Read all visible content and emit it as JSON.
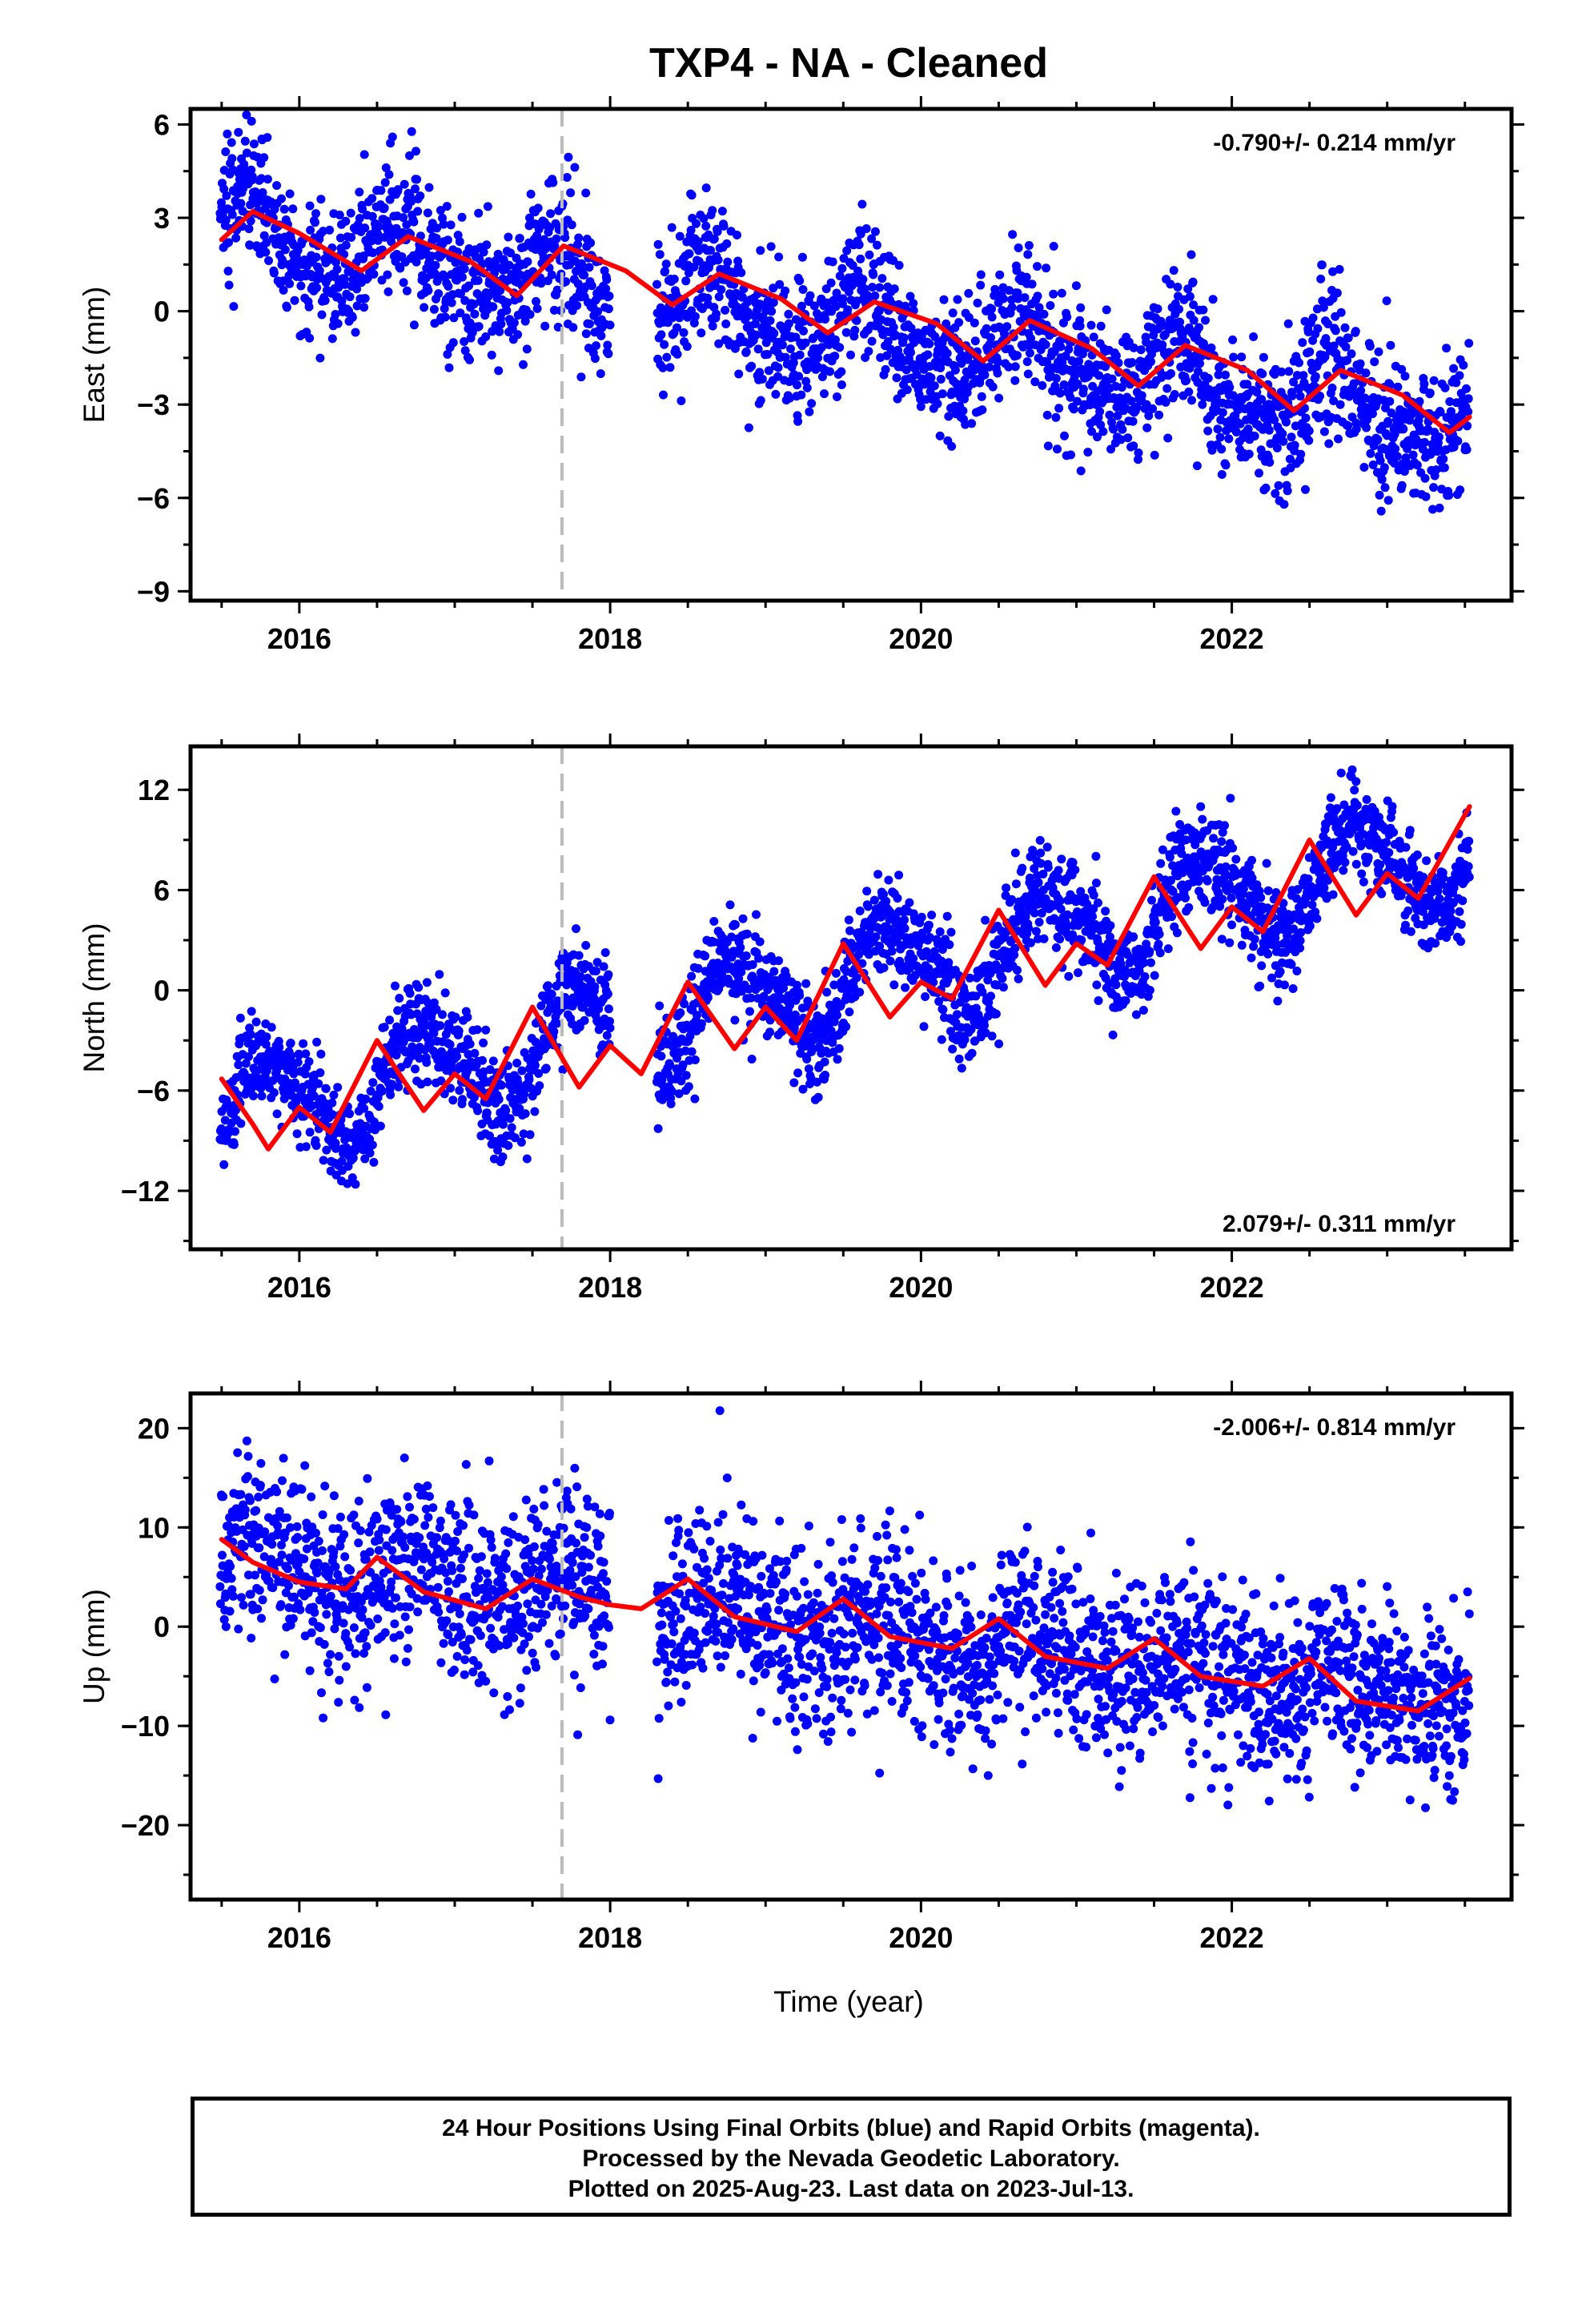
{
  "title": "TXP4  - NA - Cleaned",
  "xlabel": "Time (year)",
  "footer": {
    "line1": "24 Hour Positions Using Final Orbits (blue) and Rapid Orbits (magenta).",
    "line2": "Processed by the Nevada Geodetic Laboratory.",
    "line3": "Plotted on 2025-Aug-23. Last data on 2023-Jul-13."
  },
  "colors": {
    "points": "#0000ff",
    "fit": "#ff0000",
    "event_line": "#bbbbbb",
    "frame": "#000000"
  },
  "chart_data": [
    {
      "type": "scatter",
      "ylabel": "East (mm)",
      "rate_label": "-0.790+/- 0.214 mm/yr",
      "xlim": [
        2015.3,
        2023.8
      ],
      "ylim": [
        -9.3,
        6.5
      ],
      "xticks": [
        2016,
        2018,
        2020,
        2022
      ],
      "yticks": [
        6,
        3,
        0,
        -3,
        -6,
        -9
      ],
      "ytick_labels": [
        "6",
        "3",
        "0",
        "−3",
        "−6",
        "−9"
      ],
      "event_line_x": 2017.69,
      "data_x_range": [
        2015.49,
        2023.53
      ],
      "gaps": [
        [
          2018.0,
          2018.3
        ]
      ],
      "model": {
        "trend_start": 2.6,
        "trend_end": -3.6,
        "annual_amp": 1.1,
        "annual_phase": 0.4,
        "semiannual_amp": 0.3,
        "noise_sd": 1.1
      },
      "fit_points": [
        [
          2015.5,
          2.3
        ],
        [
          2015.7,
          3.2
        ],
        [
          2016.0,
          2.5
        ],
        [
          2016.4,
          1.3
        ],
        [
          2016.7,
          2.4
        ],
        [
          2017.1,
          1.6
        ],
        [
          2017.4,
          0.5
        ],
        [
          2017.7,
          2.1
        ],
        [
          2018.1,
          1.3
        ],
        [
          2018.4,
          0.2
        ],
        [
          2018.7,
          1.2
        ],
        [
          2019.1,
          0.4
        ],
        [
          2019.4,
          -0.7
        ],
        [
          2019.7,
          0.3
        ],
        [
          2020.1,
          -0.4
        ],
        [
          2020.4,
          -1.6
        ],
        [
          2020.7,
          -0.3
        ],
        [
          2021.1,
          -1.2
        ],
        [
          2021.4,
          -2.4
        ],
        [
          2021.7,
          -1.1
        ],
        [
          2022.1,
          -1.9
        ],
        [
          2022.4,
          -3.2
        ],
        [
          2022.7,
          -1.9
        ],
        [
          2023.1,
          -2.7
        ],
        [
          2023.4,
          -3.9
        ],
        [
          2023.53,
          -3.4
        ]
      ]
    },
    {
      "type": "scatter",
      "ylabel": "North (mm)",
      "rate_label": "2.079+/- 0.311 mm/yr",
      "xlim": [
        2015.3,
        2023.8
      ],
      "ylim": [
        -15.5,
        14.6
      ],
      "xticks": [
        2016,
        2018,
        2020,
        2022
      ],
      "yticks": [
        12,
        6,
        0,
        -6,
        -12
      ],
      "ytick_labels": [
        "12",
        "6",
        "0",
        "−6",
        "−12"
      ],
      "event_line_x": 2017.69,
      "data_x_range": [
        2015.49,
        2023.53
      ],
      "gaps": [
        [
          2018.0,
          2018.3
        ]
      ],
      "model": {
        "trend_start": -7.5,
        "trend_end": 8.5,
        "annual_amp": 3.0,
        "annual_phase": 0.55,
        "semiannual_amp": 0.6,
        "noise_sd": 1.5
      },
      "fit_points": [
        [
          2015.5,
          -5.3
        ],
        [
          2015.7,
          -8.0
        ],
        [
          2015.8,
          -9.5
        ],
        [
          2016.0,
          -7.0
        ],
        [
          2016.2,
          -8.5
        ],
        [
          2016.5,
          -3.0
        ],
        [
          2016.8,
          -7.2
        ],
        [
          2017.0,
          -5.0
        ],
        [
          2017.2,
          -6.5
        ],
        [
          2017.5,
          -1.0
        ],
        [
          2017.8,
          -5.8
        ],
        [
          2018.0,
          -3.3
        ],
        [
          2018.2,
          -5.0
        ],
        [
          2018.5,
          0.5
        ],
        [
          2018.8,
          -3.5
        ],
        [
          2019.0,
          -1.0
        ],
        [
          2019.2,
          -3.0
        ],
        [
          2019.5,
          2.8
        ],
        [
          2019.8,
          -1.6
        ],
        [
          2020.0,
          0.5
        ],
        [
          2020.2,
          -0.5
        ],
        [
          2020.5,
          4.8
        ],
        [
          2020.8,
          0.3
        ],
        [
          2021.0,
          2.8
        ],
        [
          2021.2,
          1.5
        ],
        [
          2021.5,
          6.8
        ],
        [
          2021.8,
          2.5
        ],
        [
          2022.0,
          5.0
        ],
        [
          2022.2,
          3.5
        ],
        [
          2022.5,
          9.0
        ],
        [
          2022.8,
          4.5
        ],
        [
          2023.0,
          7.0
        ],
        [
          2023.2,
          5.5
        ],
        [
          2023.53,
          11.0
        ]
      ]
    },
    {
      "type": "scatter",
      "ylabel": "Up (mm)",
      "rate_label": "-2.006+/- 0.814 mm/yr",
      "xlim": [
        2015.3,
        2023.8
      ],
      "ylim": [
        -27.5,
        23.5
      ],
      "xticks": [
        2016,
        2018,
        2020,
        2022
      ],
      "yticks": [
        20,
        10,
        0,
        -10,
        -20
      ],
      "ytick_labels": [
        "20",
        "10",
        "0",
        "−10",
        "−20"
      ],
      "event_line_x": 2017.69,
      "data_x_range": [
        2015.49,
        2023.53
      ],
      "gaps": [
        [
          2018.0,
          2018.3
        ]
      ],
      "model": {
        "trend_start": 7.0,
        "trend_end": -7.5,
        "annual_amp": 2.0,
        "annual_phase": 0.5,
        "semiannual_amp": 0.4,
        "noise_sd": 4.5
      },
      "fit_points": [
        [
          2015.5,
          8.8
        ],
        [
          2015.7,
          6.5
        ],
        [
          2016.0,
          4.5
        ],
        [
          2016.3,
          3.8
        ],
        [
          2016.5,
          7.0
        ],
        [
          2016.8,
          3.5
        ],
        [
          2017.2,
          1.8
        ],
        [
          2017.5,
          4.8
        ],
        [
          2017.8,
          3.0
        ],
        [
          2018.0,
          2.2
        ],
        [
          2018.2,
          1.8
        ],
        [
          2018.5,
          4.8
        ],
        [
          2018.8,
          1.0
        ],
        [
          2019.2,
          -0.5
        ],
        [
          2019.5,
          2.8
        ],
        [
          2019.8,
          -1.0
        ],
        [
          2020.2,
          -2.2
        ],
        [
          2020.5,
          0.8
        ],
        [
          2020.8,
          -3.0
        ],
        [
          2021.2,
          -4.2
        ],
        [
          2021.5,
          -1.2
        ],
        [
          2021.8,
          -5.0
        ],
        [
          2022.2,
          -6.0
        ],
        [
          2022.5,
          -3.2
        ],
        [
          2022.8,
          -7.5
        ],
        [
          2023.2,
          -8.5
        ],
        [
          2023.53,
          -5.2
        ]
      ]
    }
  ]
}
